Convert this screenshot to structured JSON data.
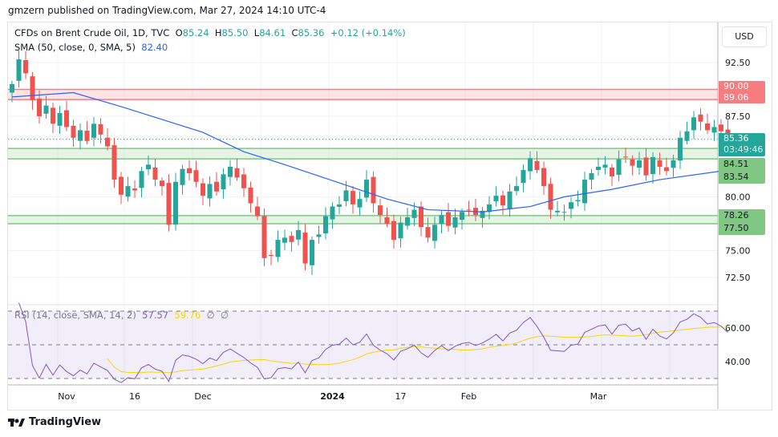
{
  "header": {
    "published": "gmzern published on TradingView.com, Mar 27, 2024 14:10 UTC-4"
  },
  "legend": {
    "symbol": "CFDs on Brent Crude Oil, 1D, TVC",
    "o_label": "O",
    "o": "85.24",
    "h_label": "H",
    "h": "85.50",
    "l_label": "L",
    "l": "84.61",
    "c_label": "C",
    "c": "85.36",
    "change": "+0.12 (+0.14%)",
    "sma_label": "SMA (50, close, 0, SMA, 5)",
    "sma_value": "82.40",
    "rsi_label": "RSI (14, close, SMA, 14, 2)",
    "rsi_value": "57.57",
    "rsi_sma_value": "59.76",
    "rsi_extra1": "∅",
    "rsi_extra2": "∅"
  },
  "currency": "USD",
  "price_tags": {
    "last": "85.36",
    "countdown": "03:49:46",
    "r1": "90.00",
    "r2": "89.06",
    "g1": "84.51",
    "g2": "83.54",
    "g3": "78.26",
    "g4": "77.50"
  },
  "colors": {
    "up": "#26a69a",
    "down": "#ef5350",
    "sma": "#2962ff",
    "rsi": "#7e57c2",
    "rsi_sma": "#f5d800",
    "red_zone": "#f77c80",
    "green_zone": "#81c784"
  },
  "brand": "TradingView",
  "chart_data": {
    "type": "candlestick",
    "price_ticks": [
      92.5,
      87.5,
      80,
      75,
      72.5
    ],
    "price_tick_labels": [
      "92.50",
      "87.50",
      "80.00",
      "75.00",
      "72.50"
    ],
    "rsi_ticks": [
      60,
      40
    ],
    "rsi_tick_labels": [
      "60.00",
      "40.00"
    ],
    "time_labels": [
      {
        "label": "Nov",
        "bar": 8
      },
      {
        "label": "16",
        "bar": 18
      },
      {
        "label": "Dec",
        "bar": 28
      },
      {
        "label": "2024",
        "bar": 47
      },
      {
        "label": "17",
        "bar": 57
      },
      {
        "label": "Feb",
        "bar": 67
      },
      {
        "label": "Mar",
        "bar": 86
      }
    ],
    "zones": [
      {
        "from": 89.06,
        "to": 90.0,
        "color": "red"
      },
      {
        "from": 83.54,
        "to": 84.51,
        "color": "green"
      },
      {
        "from": 77.5,
        "to": 78.26,
        "color": "green"
      }
    ],
    "last_price": 85.36,
    "closes": [
      90.5,
      92.8,
      91.5,
      89,
      87.5,
      88.5,
      86.8,
      87.8,
      86.5,
      85.5,
      86.2,
      85.2,
      86.8,
      85.8,
      84.7,
      81.6,
      80.2,
      81,
      80.6,
      82.4,
      83,
      81.6,
      81,
      77.4,
      81.4,
      82.6,
      82.2,
      81.4,
      80.1,
      81.2,
      80.5,
      82.1,
      82.8,
      81.8,
      80.8,
      79.4,
      78.2,
      74.3,
      74.5,
      76,
      76.2,
      75.8,
      76.9,
      73.8,
      76,
      76.5,
      78.2,
      79.1,
      79.3,
      80.6,
      79.3,
      79.8,
      81.6,
      79.4,
      78.3,
      77.5,
      76,
      77.6,
      78.1,
      78.8,
      77.2,
      76.2,
      77.4,
      78.3,
      77.3,
      78.1,
      78.6,
      78.8,
      78.3,
      78.7,
      79.3,
      80.1,
      79.2,
      80.5,
      81,
      82.5,
      83.6,
      82.5,
      81,
      78.8,
      78.7,
      78.6,
      79.5,
      79.7,
      81.6,
      82.2,
      82.8,
      83,
      81.9,
      83.5,
      83.7,
      82.9,
      83.4,
      82,
      83.7,
      82.8,
      82.4,
      83.4,
      85.5,
      86.1,
      87.4,
      87,
      86.2,
      86.5,
      86.1,
      85.36
    ],
    "sma50": [
      [
        0,
        89.3
      ],
      [
        9,
        89.7
      ],
      [
        16,
        88.4
      ],
      [
        28,
        86
      ],
      [
        34,
        84.2
      ],
      [
        40,
        83
      ],
      [
        48,
        81.3
      ],
      [
        55,
        79.8
      ],
      [
        61,
        78.8
      ],
      [
        69,
        78.6
      ],
      [
        76,
        79.1
      ],
      [
        81,
        80
      ],
      [
        88,
        80.7
      ],
      [
        95,
        81.6
      ],
      [
        104,
        82.4
      ]
    ],
    "rsi_levels": [
      70,
      50,
      30
    ]
  }
}
